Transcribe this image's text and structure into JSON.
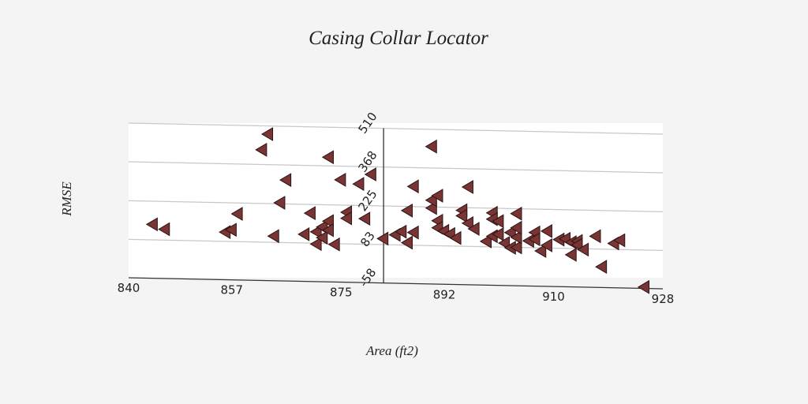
{
  "chart_data": {
    "type": "scatter",
    "title": "Casing Collar Locator",
    "xlabel": "Area (ft2)",
    "ylabel": "RMSE",
    "xlim": [
      840,
      928
    ],
    "ylim": [
      -58,
      510
    ],
    "x_ticks": [
      "840",
      "857",
      "875",
      "892",
      "910",
      "928"
    ],
    "y_ticks": [
      "-58",
      "83",
      "225",
      "368",
      "510"
    ],
    "grid": "horizontal",
    "marker": "triangle-left",
    "colors": {
      "marker": "#7a3434",
      "marker_edge": "#2a1414",
      "plot_bg": "#ffffff",
      "page_bg": "#f4f4f4"
    },
    "series": [
      {
        "values": [
          {
            "x": 844,
            "y": 140
          },
          {
            "x": 846,
            "y": 123
          },
          {
            "x": 856,
            "y": 117
          },
          {
            "x": 857,
            "y": 126
          },
          {
            "x": 858,
            "y": 185
          },
          {
            "x": 862,
            "y": 422
          },
          {
            "x": 863,
            "y": 480
          },
          {
            "x": 864,
            "y": 106
          },
          {
            "x": 865,
            "y": 229
          },
          {
            "x": 866,
            "y": 313
          },
          {
            "x": 869,
            "y": 115
          },
          {
            "x": 870,
            "y": 193
          },
          {
            "x": 871,
            "y": 80
          },
          {
            "x": 871,
            "y": 125
          },
          {
            "x": 872,
            "y": 143
          },
          {
            "x": 872,
            "y": 104
          },
          {
            "x": 873,
            "y": 165
          },
          {
            "x": 873,
            "y": 132
          },
          {
            "x": 873,
            "y": 400
          },
          {
            "x": 874,
            "y": 80
          },
          {
            "x": 875,
            "y": 318
          },
          {
            "x": 876,
            "y": 199
          },
          {
            "x": 876,
            "y": 177
          },
          {
            "x": 878,
            "y": 304
          },
          {
            "x": 879,
            "y": 177
          },
          {
            "x": 880,
            "y": 340
          },
          {
            "x": 882,
            "y": 105
          },
          {
            "x": 884,
            "y": 120
          },
          {
            "x": 885,
            "y": 132
          },
          {
            "x": 886,
            "y": 92
          },
          {
            "x": 886,
            "y": 210
          },
          {
            "x": 887,
            "y": 130
          },
          {
            "x": 887,
            "y": 299
          },
          {
            "x": 890,
            "y": 447
          },
          {
            "x": 890,
            "y": 221
          },
          {
            "x": 890,
            "y": 250
          },
          {
            "x": 891,
            "y": 267
          },
          {
            "x": 891,
            "y": 175
          },
          {
            "x": 891,
            "y": 149
          },
          {
            "x": 892,
            "y": 138
          },
          {
            "x": 893,
            "y": 127
          },
          {
            "x": 894,
            "y": 113
          },
          {
            "x": 895,
            "y": 215
          },
          {
            "x": 895,
            "y": 195
          },
          {
            "x": 896,
            "y": 168
          },
          {
            "x": 896,
            "y": 301
          },
          {
            "x": 897,
            "y": 148
          },
          {
            "x": 899,
            "y": 103
          },
          {
            "x": 900,
            "y": 122
          },
          {
            "x": 900,
            "y": 208
          },
          {
            "x": 900,
            "y": 185
          },
          {
            "x": 901,
            "y": 178
          },
          {
            "x": 901,
            "y": 130
          },
          {
            "x": 902,
            "y": 98
          },
          {
            "x": 903,
            "y": 137
          },
          {
            "x": 903,
            "y": 81
          },
          {
            "x": 904,
            "y": 83
          },
          {
            "x": 904,
            "y": 120
          },
          {
            "x": 904,
            "y": 155
          },
          {
            "x": 904,
            "y": 207
          },
          {
            "x": 906,
            "y": 108
          },
          {
            "x": 907,
            "y": 139
          },
          {
            "x": 907,
            "y": 114
          },
          {
            "x": 908,
            "y": 72
          },
          {
            "x": 909,
            "y": 145
          },
          {
            "x": 909,
            "y": 93
          },
          {
            "x": 911,
            "y": 115
          },
          {
            "x": 912,
            "y": 118
          },
          {
            "x": 913,
            "y": 106
          },
          {
            "x": 913,
            "y": 60
          },
          {
            "x": 914,
            "y": 111
          },
          {
            "x": 914,
            "y": 97
          },
          {
            "x": 915,
            "y": 80
          },
          {
            "x": 917,
            "y": 130
          },
          {
            "x": 918,
            "y": 18
          },
          {
            "x": 920,
            "y": 105
          },
          {
            "x": 921,
            "y": 117
          },
          {
            "x": 925,
            "y": -53
          }
        ]
      }
    ]
  }
}
